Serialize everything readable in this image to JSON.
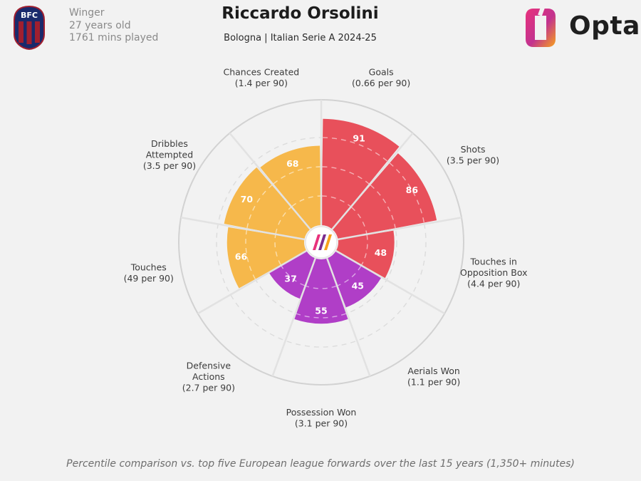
{
  "player": {
    "name": "Riccardo Orsolini",
    "team_league": "Bologna | Italian Serie A 2024-25",
    "position": "Winger",
    "age": "27 years old",
    "minutes": "1761 mins played"
  },
  "crest": {
    "text": "BFC",
    "primary_color": "#1a2a6c",
    "secondary_color": "#a11f2f"
  },
  "brand": {
    "name": "Opta",
    "accent_colors": [
      "#e8327c",
      "#f7a21b",
      "#7b2d8e"
    ]
  },
  "footnote": "Percentile comparison vs. top five European league forwards over the last 15 years (1,350+ minutes)",
  "chart_data": {
    "type": "radar-percentile",
    "scale": [
      0,
      100
    ],
    "rings": [
      25,
      50,
      75
    ],
    "categories": [
      {
        "label_lines": [
          "Goals",
          "(0.66 per 90)"
        ],
        "percentile": 91,
        "color": "#e8505b"
      },
      {
        "label_lines": [
          "Shots",
          "(3.5 per 90)"
        ],
        "percentile": 86,
        "color": "#e8505b"
      },
      {
        "label_lines": [
          "Touches in",
          "Opposition Box",
          "(4.4 per 90)"
        ],
        "percentile": 48,
        "color": "#e8505b"
      },
      {
        "label_lines": [
          "Aerials Won",
          "(1.1 per 90)"
        ],
        "percentile": 45,
        "color": "#b03ec7"
      },
      {
        "label_lines": [
          "Possession Won",
          "(3.1 per 90)"
        ],
        "percentile": 55,
        "color": "#b03ec7"
      },
      {
        "label_lines": [
          "Defensive",
          "Actions",
          "(2.7 per 90)"
        ],
        "percentile": 37,
        "color": "#b03ec7"
      },
      {
        "label_lines": [
          "Touches",
          "(49 per 90)"
        ],
        "percentile": 66,
        "color": "#f6b84b"
      },
      {
        "label_lines": [
          "Dribbles",
          "Attempted",
          "(3.5 per 90)"
        ],
        "percentile": 70,
        "color": "#f6b84b"
      },
      {
        "label_lines": [
          "Chances Created",
          "(1.4 per 90)"
        ],
        "percentile": 68,
        "color": "#f6b84b"
      }
    ]
  }
}
